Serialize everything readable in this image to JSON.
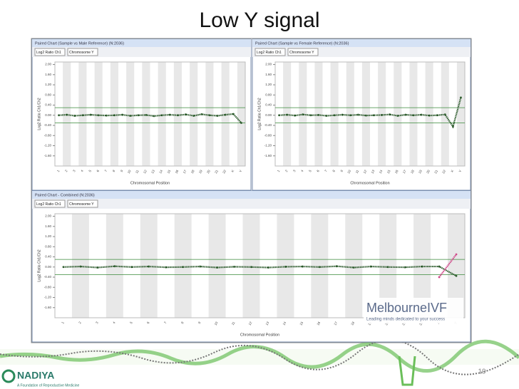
{
  "slide": {
    "title": "Low Y signal",
    "page_number": "19",
    "logo": "NADIYA",
    "logo_tagline": "A Foundation of Reproductive Medicine",
    "brand": "MelbourneIVF",
    "brand_tagline": "Leading minds dedicated to your success"
  },
  "chart_data": [
    {
      "type": "line",
      "title": "Paired Chart (Sample vs Male Reference) (N:2036)",
      "controls": [
        "Log2 Ratio Ch1",
        "Chromosome Y"
      ],
      "y_label": "Log2 Ratio Ch1/Ch2",
      "x_label": "Chromosomal Position",
      "categories": [
        "1",
        "2",
        "3",
        "4",
        "5",
        "6",
        "7",
        "8",
        "9",
        "10",
        "11",
        "12",
        "13",
        "14",
        "15",
        "16",
        "17",
        "18",
        "19",
        "20",
        "21",
        "22",
        "X",
        "Y"
      ],
      "ylim": [
        -2,
        2.1
      ],
      "yticks": [
        {
          "value": 2,
          "label": "2.00"
        },
        {
          "value": 1.6,
          "label": "1.60"
        },
        {
          "value": 1.2,
          "label": "1.20"
        },
        {
          "value": 0.8,
          "label": "0.80"
        },
        {
          "value": 0.4,
          "label": "0.40"
        },
        {
          "value": 0,
          "label": "0.00"
        },
        {
          "value": -0.4,
          "label": "-0.40"
        },
        {
          "value": -0.8,
          "label": "-0.80"
        },
        {
          "value": -1.2,
          "label": "-1.20"
        },
        {
          "value": -1.6,
          "label": "-1.60"
        }
      ],
      "thresholds": [
        0.3,
        -0.3
      ],
      "series": [
        {
          "color": "#2f5d2f",
          "values": [
            0,
            0.02,
            -0.02,
            0,
            0.02,
            0,
            -0.01,
            0,
            0.02,
            -0.02,
            0,
            0.01,
            -0.03,
            0,
            0.02,
            0,
            0.03,
            -0.02,
            0.04,
            0,
            -0.02,
            0.02,
            0.05,
            -0.3
          ]
        }
      ]
    },
    {
      "type": "line",
      "title": "Paired Chart (Sample vs Female Reference) (N:2036)",
      "controls": [
        "Log2 Ratio Ch1",
        "Chromosome Y"
      ],
      "y_label": "Log2 Ratio Ch1/Ch2",
      "x_label": "Chromosomal Position",
      "categories": [
        "1",
        "2",
        "3",
        "4",
        "5",
        "6",
        "7",
        "8",
        "9",
        "10",
        "11",
        "12",
        "13",
        "14",
        "15",
        "16",
        "17",
        "18",
        "19",
        "20",
        "21",
        "22",
        "X",
        "Y"
      ],
      "ylim": [
        -2,
        2.1
      ],
      "yticks": [
        {
          "value": 2,
          "label": "2.00"
        },
        {
          "value": 1.6,
          "label": "1.60"
        },
        {
          "value": 1.2,
          "label": "1.20"
        },
        {
          "value": 0.8,
          "label": "0.80"
        },
        {
          "value": 0.4,
          "label": "0.40"
        },
        {
          "value": 0,
          "label": "0.00"
        },
        {
          "value": -0.4,
          "label": "-0.40"
        },
        {
          "value": -0.8,
          "label": "-0.80"
        },
        {
          "value": -1.2,
          "label": "-1.20"
        },
        {
          "value": -1.6,
          "label": "-1.60"
        }
      ],
      "thresholds": [
        0.3,
        -0.3
      ],
      "series": [
        {
          "color": "#2f5d2f",
          "values": [
            0,
            0.02,
            -0.01,
            0.03,
            0,
            0.01,
            -0.02,
            0,
            0.02,
            0,
            0.02,
            -0.01,
            0,
            0.01,
            0.03,
            -0.02,
            0.02,
            0,
            0.02,
            -0.01,
            0,
            0.03,
            -0.45,
            0.7
          ]
        }
      ]
    },
    {
      "type": "line",
      "title": "Paired Chart - Combined (N:2036)",
      "controls": [
        "Log2 Ratio Ch1",
        "Chromosome Y"
      ],
      "y_label": "Log2 Ratio Ch1/Ch2",
      "x_label": "Chromosomal Position",
      "categories": [
        "1",
        "2",
        "3",
        "4",
        "5",
        "6",
        "7",
        "8",
        "9",
        "10",
        "11",
        "12",
        "13",
        "14",
        "15",
        "16",
        "17",
        "18",
        "19",
        "20",
        "21",
        "22",
        "X",
        "Y"
      ],
      "ylim": [
        -2,
        2.1
      ],
      "yticks": [
        {
          "value": 2,
          "label": "2.00"
        },
        {
          "value": 1.6,
          "label": "1.60"
        },
        {
          "value": 1.2,
          "label": "1.20"
        },
        {
          "value": 0.8,
          "label": "0.80"
        },
        {
          "value": 0.4,
          "label": "0.40"
        },
        {
          "value": 0,
          "label": "0.00"
        },
        {
          "value": -0.4,
          "label": "-0.40"
        },
        {
          "value": -0.8,
          "label": "-0.80"
        },
        {
          "value": -1.2,
          "label": "-1.20"
        },
        {
          "value": -1.6,
          "label": "-1.60"
        }
      ],
      "thresholds": [
        0.3,
        -0.3
      ],
      "series": [
        {
          "color": "#2f5d2f",
          "values": [
            0,
            0.02,
            -0.02,
            0.03,
            0,
            0.02,
            -0.01,
            0,
            0.02,
            -0.02,
            0.01,
            0,
            -0.02,
            0.01,
            0.02,
            0,
            0.03,
            -0.02,
            0.02,
            0,
            -0.01,
            0.02,
            0.02,
            -0.35
          ]
        },
        {
          "color": "#d04a8a",
          "values": [
            null,
            null,
            null,
            null,
            null,
            null,
            null,
            null,
            null,
            null,
            null,
            null,
            null,
            null,
            null,
            null,
            null,
            null,
            null,
            null,
            null,
            null,
            -0.4,
            0.5
          ]
        }
      ]
    }
  ]
}
